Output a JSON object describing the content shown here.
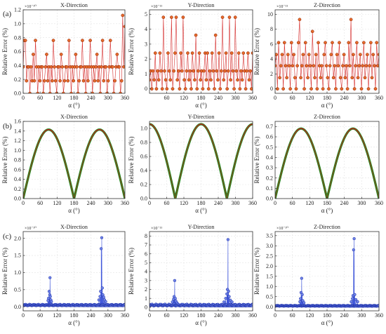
{
  "figure": {
    "row_labels": [
      "(a)",
      "(b)",
      "(c)"
    ]
  },
  "chart_data": [
    {
      "type": "scatter",
      "row": "(a)",
      "title": "X-Direction",
      "xlabel": "α (°)",
      "ylabel": "Relative Error (%)",
      "multiplier": "×10⁻¹⁰",
      "xlim": [
        0,
        360
      ],
      "ylim": [
        0,
        1.2
      ],
      "xticks": [
        0,
        60,
        120,
        180,
        240,
        300,
        360
      ],
      "yticks": [
        0.0,
        0.2,
        0.4,
        0.6,
        0.8,
        1.0,
        1.2
      ],
      "grid": true,
      "color": "#d11a1a",
      "marker_fill": "#e46a2a",
      "series": [
        {
          "values": [
            0.38,
            0.76,
            0.76,
            0.18,
            0.38,
            0.38,
            0.0,
            0.38,
            0.18,
            0.56,
            0.18,
            0.76,
            0.38,
            0.0,
            0.38,
            0.18,
            0.38,
            0.38,
            0.0,
            0.18,
            0.38,
            0.56,
            0.18,
            0.38,
            0.0,
            0.38,
            0.18,
            0.76,
            0.38,
            0.18,
            0.0,
            0.38,
            0.38,
            0.18,
            0.56,
            0.38,
            0.0,
            0.18,
            0.38,
            0.38,
            0.18,
            0.76,
            0.38,
            0.0,
            0.38,
            0.18,
            0.38,
            0.56,
            0.38,
            0.0,
            0.18,
            0.38,
            0.38,
            0.76,
            0.18,
            0.38,
            0.0,
            0.38,
            0.18,
            0.38,
            0.76,
            0.38,
            0.0,
            0.38,
            0.18,
            0.38,
            0.56,
            0.18,
            0.38,
            0.0,
            0.38,
            0.76,
            0.18,
            0.38,
            0.38,
            0.0,
            0.18,
            0.38,
            0.76,
            0.38,
            0.38,
            0.0,
            0.18,
            0.38,
            0.56,
            0.38,
            0.38,
            0.0,
            0.18,
            1.12,
            0.38,
            0.96
          ]
        }
      ]
    },
    {
      "type": "scatter",
      "row": "(a)",
      "title": "Y-Direction",
      "xlabel": "α (°)",
      "ylabel": "Relative Error (%)",
      "multiplier": "×10⁻¹¹",
      "xlim": [
        0,
        360
      ],
      "ylim": [
        -0.3,
        5.3
      ],
      "xticks": [
        60,
        120,
        180,
        240,
        300,
        360
      ],
      "yticks": [
        0,
        1,
        2,
        3,
        4,
        5
      ],
      "grid": true,
      "color": "#d11a1a",
      "marker_fill": "#e46a2a",
      "series": [
        {
          "values": [
            0.6,
            1.2,
            0.0,
            1.2,
            0.6,
            2.4,
            0.0,
            1.2,
            0.6,
            2.4,
            1.2,
            0.0,
            4.8,
            1.2,
            0.6,
            0.0,
            2.4,
            1.2,
            0.6,
            4.8,
            0.0,
            1.2,
            2.4,
            4.8,
            0.6,
            1.2,
            0.0,
            2.4,
            1.2,
            4.8,
            0.6,
            0.0,
            1.2,
            2.4,
            0.6,
            1.2,
            0.0,
            2.4,
            1.2,
            0.6,
            3.6,
            0.0,
            1.2,
            2.4,
            0.6,
            1.2,
            0.0,
            1.2,
            2.4,
            0.6,
            2.4,
            0.0,
            1.2,
            0.6,
            2.4,
            1.2,
            0.0,
            3.6,
            1.2,
            0.6,
            2.4,
            0.0,
            1.2,
            4.8,
            0.6,
            1.2,
            2.4,
            0.0,
            1.2,
            4.8,
            0.6,
            2.4,
            1.2,
            0.0,
            4.8,
            1.2,
            0.6,
            2.4,
            0.0,
            1.2,
            0.6,
            2.4,
            1.2,
            0.0,
            1.2,
            2.4,
            0.6,
            1.2,
            0.0,
            2.4
          ]
        }
      ]
    },
    {
      "type": "scatter",
      "row": "(a)",
      "title": "Z-Direction",
      "xlabel": "α (°)",
      "ylabel": "Relative Error (%)",
      "multiplier": "×10⁻¹¹",
      "xlim": [
        0,
        360
      ],
      "ylim": [
        -0.6,
        10.6
      ],
      "xticks": [
        0,
        60,
        120,
        180,
        240,
        300,
        360
      ],
      "yticks": [
        0,
        2,
        4,
        6,
        8,
        10
      ],
      "grid": true,
      "color": "#d11a1a",
      "marker_fill": "#e46a2a",
      "series": [
        {
          "values": [
            3.1,
            4.6,
            0.0,
            6.2,
            1.5,
            3.1,
            4.6,
            0.0,
            6.2,
            3.1,
            1.5,
            4.6,
            3.1,
            0.0,
            6.2,
            3.1,
            4.6,
            1.5,
            0.0,
            3.1,
            6.2,
            9.3,
            1.5,
            3.1,
            4.6,
            0.0,
            6.2,
            3.1,
            1.5,
            4.6,
            3.1,
            0.0,
            7.7,
            3.1,
            1.5,
            4.6,
            0.0,
            6.2,
            3.1,
            1.5,
            3.1,
            0.0,
            4.6,
            6.2,
            3.1,
            1.5,
            0.0,
            3.1,
            4.6,
            6.2,
            1.5,
            3.1,
            0.0,
            4.6,
            3.1,
            6.2,
            1.5,
            0.0,
            3.1,
            4.6,
            1.5,
            3.1,
            0.0,
            6.2,
            3.1,
            9.3,
            1.5,
            4.6,
            0.0,
            3.1,
            6.2,
            1.5,
            3.1,
            4.6,
            0.0,
            3.1,
            6.2,
            1.5,
            3.1,
            4.6,
            0.0,
            3.1,
            6.2,
            1.5,
            4.6,
            3.1,
            0.0,
            6.2,
            3.1,
            4.6
          ]
        }
      ]
    },
    {
      "type": "line",
      "row": "(b)",
      "title": "X-Direction",
      "xlabel": "α (°)",
      "ylabel": "Relative Error (%)",
      "xlim": [
        0,
        360
      ],
      "ylim": [
        0,
        1.6
      ],
      "xticks": [
        0,
        60,
        120,
        180,
        240,
        300,
        360
      ],
      "yticks": [
        0.0,
        0.2,
        0.4,
        0.6,
        0.8,
        1.0,
        1.2,
        1.4,
        1.6
      ],
      "grid": true,
      "color": "#1e8a1e",
      "marker_color": "#c42020",
      "curve": {
        "form": "amplitude × |sin(α − phase)|",
        "amplitude": 1.43,
        "phase_deg": 0
      }
    },
    {
      "type": "line",
      "row": "(b)",
      "title": "Y-Direction",
      "xlabel": "α (°)",
      "ylabel": "Relative Error (%)",
      "xlim": [
        0,
        360
      ],
      "ylim": [
        0,
        1.1
      ],
      "xticks": [
        0,
        60,
        120,
        180,
        240,
        300,
        360
      ],
      "yticks": [
        0.0,
        0.2,
        0.4,
        0.6,
        0.8,
        1.0
      ],
      "grid": true,
      "color": "#1e8a1e",
      "marker_color": "#c42020",
      "curve": {
        "form": "amplitude × |sin(α − phase)|",
        "amplitude": 1.06,
        "phase_deg": 90
      }
    },
    {
      "type": "line",
      "row": "(b)",
      "title": "Z-Direction",
      "xlabel": "α (°)",
      "ylabel": "Relative Error (%)",
      "xlim": [
        0,
        360
      ],
      "ylim": [
        0,
        0.75
      ],
      "xticks": [
        0,
        60,
        120,
        180,
        240,
        300,
        360
      ],
      "yticks": [
        0.0,
        0.1,
        0.2,
        0.3,
        0.4,
        0.5,
        0.6,
        0.7
      ],
      "grid": true,
      "color": "#1e8a1e",
      "marker_color": "#c42020",
      "curve": {
        "form": "amplitude × |sin(α − phase)|",
        "amplitude": 0.68,
        "phase_deg": 0
      }
    },
    {
      "type": "scatter",
      "row": "(c)",
      "title": "X-Direction",
      "xlabel": "α (°)",
      "ylabel": "Relative Error (%)",
      "multiplier": "×10⁻¹⁰",
      "xlim": [
        0,
        360
      ],
      "ylim": [
        -0.12,
        2.2
      ],
      "xticks": [
        0,
        60,
        120,
        180,
        240,
        300,
        360
      ],
      "yticks": [
        0.0,
        0.5,
        1.0,
        1.5,
        2.0
      ],
      "grid": true,
      "color": "#2b45d6",
      "marker_fill": "#6f83e8",
      "baseline": 0.05,
      "spikes": [
        [
          88,
          0.18
        ],
        [
          90,
          0.25
        ],
        [
          92,
          0.45
        ],
        [
          94,
          0.35
        ],
        [
          95,
          0.85
        ],
        [
          96,
          0.3
        ],
        [
          98,
          0.2
        ],
        [
          100,
          0.15
        ],
        [
          268,
          0.2
        ],
        [
          272,
          0.3
        ],
        [
          274,
          0.45
        ],
        [
          276,
          1.7
        ],
        [
          278,
          2.02
        ],
        [
          280,
          0.55
        ],
        [
          282,
          0.35
        ],
        [
          285,
          0.28
        ],
        [
          288,
          0.2
        ],
        [
          292,
          0.15
        ]
      ]
    },
    {
      "type": "scatter",
      "row": "(c)",
      "title": "Y-Direction",
      "xlabel": "α (°)",
      "ylabel": "Relative Error (%)",
      "multiplier": "×10⁻¹¹",
      "xlim": [
        0,
        360
      ],
      "ylim": [
        -0.4,
        8.5
      ],
      "xticks": [
        0,
        60,
        120,
        180,
        240,
        300,
        360
      ],
      "yticks": [
        0,
        1,
        2,
        3,
        4,
        5,
        6,
        7,
        8
      ],
      "grid": true,
      "color": "#2b45d6",
      "marker_fill": "#6f83e8",
      "baseline": 0.25,
      "spikes": [
        [
          80,
          0.6
        ],
        [
          84,
          0.9
        ],
        [
          86,
          1.2
        ],
        [
          88,
          3.0
        ],
        [
          90,
          1.0
        ],
        [
          92,
          0.7
        ],
        [
          96,
          0.5
        ],
        [
          260,
          0.6
        ],
        [
          266,
          1.0
        ],
        [
          270,
          1.5
        ],
        [
          272,
          2.0
        ],
        [
          274,
          7.6
        ],
        [
          276,
          1.8
        ],
        [
          278,
          1.2
        ],
        [
          282,
          0.8
        ],
        [
          288,
          0.6
        ]
      ]
    },
    {
      "type": "scatter",
      "row": "(c)",
      "title": "Z-Direction",
      "xlabel": "α (°)",
      "ylabel": "Relative Error (%)",
      "multiplier": "×10⁻¹⁰",
      "xlim": [
        0,
        360
      ],
      "ylim": [
        -0.2,
        3.7
      ],
      "xticks": [
        0,
        60,
        120,
        180,
        240,
        300,
        360
      ],
      "yticks": [
        0.0,
        0.5,
        1.0,
        1.5,
        2.0,
        2.5,
        3.0,
        3.5
      ],
      "grid": true,
      "color": "#2b45d6",
      "marker_fill": "#6f83e8",
      "baseline": 0.05,
      "spikes": [
        [
          86,
          0.25
        ],
        [
          88,
          0.4
        ],
        [
          90,
          0.7
        ],
        [
          92,
          1.4
        ],
        [
          94,
          0.6
        ],
        [
          96,
          0.3
        ],
        [
          100,
          0.2
        ],
        [
          264,
          0.25
        ],
        [
          268,
          0.4
        ],
        [
          270,
          0.55
        ],
        [
          272,
          2.8
        ],
        [
          274,
          3.35
        ],
        [
          276,
          0.6
        ],
        [
          280,
          0.35
        ],
        [
          286,
          0.25
        ]
      ]
    }
  ]
}
